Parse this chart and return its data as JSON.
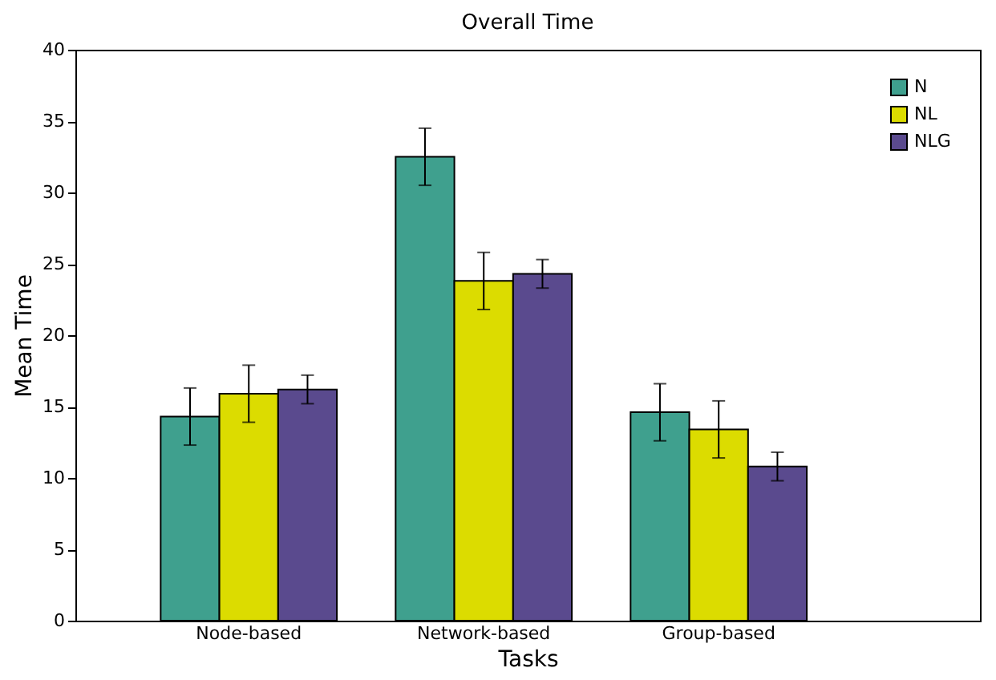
{
  "chart_data": {
    "type": "bar",
    "title": "Overall Time",
    "xlabel": "Tasks",
    "ylabel": "Mean Time",
    "categories": [
      "Node-based",
      "Network-based",
      "Group-based"
    ],
    "series": [
      {
        "name": "N",
        "color": "#3fa08e",
        "values": [
          14.3,
          32.5,
          14.6
        ],
        "errors": [
          2,
          2,
          2
        ]
      },
      {
        "name": "NL",
        "color": "#dcdc00",
        "values": [
          15.9,
          23.8,
          13.4
        ],
        "errors": [
          2,
          2,
          2
        ]
      },
      {
        "name": "NLG",
        "color": "#5a4a8e",
        "values": [
          16.2,
          24.3,
          10.8
        ],
        "errors": [
          1,
          1,
          1
        ]
      }
    ],
    "ylim": [
      0,
      40
    ],
    "yticks": [
      0,
      5,
      10,
      15,
      20,
      25,
      30,
      35,
      40
    ],
    "grid": false,
    "legend": "top right"
  }
}
